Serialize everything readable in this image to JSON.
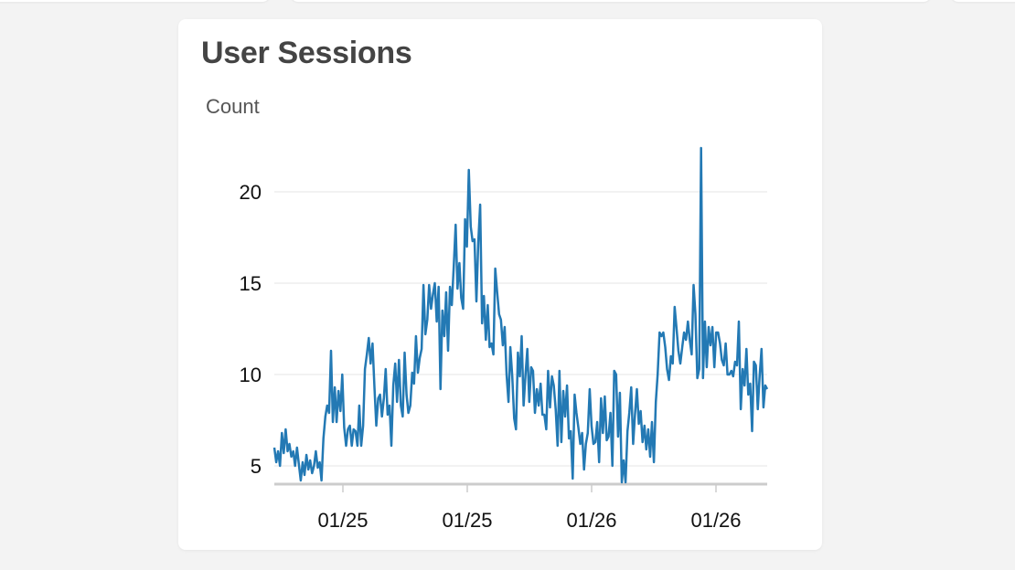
{
  "card": {
    "title": "User Sessions"
  },
  "chart_data": {
    "type": "line",
    "title": "User Sessions",
    "ylabel": "Count",
    "xlabel": "",
    "ylim": [
      4,
      25
    ],
    "yticks": [
      5,
      10,
      15,
      20
    ],
    "xtick_labels": [
      "01/25",
      "01/25",
      "01/26",
      "01/26"
    ],
    "line_color": "#2379b4",
    "grid": true,
    "series": [
      {
        "values": [
          6,
          5.2,
          5.8,
          5,
          6.8,
          5.7,
          7,
          5.8,
          6.2,
          5.5,
          5.8,
          5,
          6,
          5.1,
          4.2,
          5.2,
          4.5,
          5.6,
          4.8,
          5.3,
          4.6,
          5,
          5.8,
          4.9,
          5.2,
          4.2,
          6.5,
          7.7,
          8.3,
          7.9,
          11.3,
          7.4,
          9.3,
          7.4,
          9.1,
          8,
          10,
          7.1,
          6.1,
          7,
          7.2,
          6.1,
          7,
          6.9,
          6.1,
          8.3,
          6.1,
          7.2,
          10.3,
          11.1,
          12,
          10.6,
          11.7,
          9.3,
          7.2,
          8.7,
          8.9,
          7.7,
          8.7,
          10.3,
          7.8,
          8.3,
          6.1,
          9.4,
          10.6,
          8.5,
          10.8,
          8.3,
          7.7,
          11.2,
          8.9,
          7.9,
          8.3,
          10.1,
          9.5,
          12.1,
          10.1,
          10.9,
          11.4,
          14.9,
          12.2,
          13,
          14.9,
          13.6,
          14.4,
          15,
          12.9,
          14.8,
          9.2,
          13.5,
          12.1,
          14.5,
          11.3,
          14.8,
          13.8,
          15.9,
          18.2,
          14.7,
          16.1,
          14.2,
          13.6,
          18.5,
          17,
          21.2,
          18.1,
          17.3,
          17.4,
          14,
          17.2,
          19.3,
          12.8,
          14.3,
          11.9,
          13.8,
          11.5,
          11.7,
          11.1,
          15.8,
          14.5,
          13.3,
          13,
          11.6,
          12.6,
          10,
          8.5,
          11.5,
          9.9,
          7.6,
          7,
          11.2,
          9.9,
          12.1,
          8.3,
          10,
          11.4,
          8.5,
          10.4,
          10.2,
          7.9,
          9.2,
          8.3,
          9.5,
          7.8,
          7.8,
          7,
          10.2,
          8.2,
          9.9,
          9.4,
          8.1,
          6.1,
          10.2,
          6.3,
          9.1,
          7.7,
          9.4,
          6.5,
          6.9,
          4.3,
          8.9,
          7.9,
          7.1,
          6.2,
          6.8,
          4.8,
          6.2,
          6.8,
          9.2,
          7.2,
          6.2,
          6.3,
          7.4,
          5.2,
          8.7,
          6.8,
          8.8,
          6.4,
          6.6,
          7.9,
          5,
          10.2,
          10,
          6.6,
          9,
          4.1,
          5.3,
          4.1,
          6.9,
          7.9,
          9.3,
          6.2,
          7.8,
          9.2,
          7.3,
          8,
          6.3,
          7.2,
          5.9,
          7,
          5.5,
          7.4,
          5.2,
          8.5,
          10,
          12.3,
          12.1,
          12.3,
          11.5,
          10.3,
          9.7,
          11,
          10.6,
          13.7,
          12.5,
          11.3,
          10.6,
          11.5,
          12.3,
          11.9,
          12.9,
          11.9,
          11.1,
          14.9,
          13.3,
          9.8,
          10.3,
          22.4,
          9.8,
          12.9,
          10.4,
          12.6,
          11.6,
          12.6,
          10.4,
          12.3,
          12.3,
          11.7,
          10.8,
          10.5,
          11.7,
          10,
          10,
          10.2,
          9.9,
          10.7,
          10.5,
          12.9,
          8.1,
          10.3,
          9.4,
          11.4,
          8.9,
          9.5,
          6.9,
          10.7,
          10.5,
          8.1,
          9.9,
          11.4,
          8.2,
          9.4,
          9.2
        ]
      }
    ]
  }
}
